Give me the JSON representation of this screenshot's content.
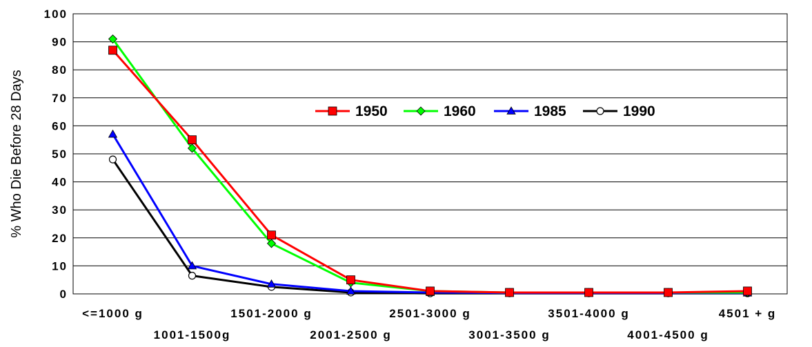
{
  "chart_data": {
    "type": "line",
    "title": "",
    "xlabel": "",
    "ylabel": "% Who Die Before 28 Days",
    "ylim": [
      0,
      100
    ],
    "yticks": [
      "0",
      "10",
      "20",
      "30",
      "40",
      "50",
      "60",
      "70",
      "80",
      "90",
      "100"
    ],
    "categories": [
      "<=1000 g",
      "1001-1500g",
      "1501-2000 g",
      "2001-2500 g",
      "2501-3000 g",
      "3001-3500 g",
      "3501-4000 g",
      "4001-4500 g",
      "4501 + g"
    ],
    "grid": true,
    "legend_position": "center",
    "series": [
      {
        "name": "1950",
        "color": "#ff0000",
        "marker": "square",
        "values": [
          87,
          55,
          21,
          5,
          1,
          0.5,
          0.5,
          0.5,
          1
        ]
      },
      {
        "name": "1960",
        "color": "#00ff00",
        "marker": "diamond",
        "values": [
          91,
          52,
          18,
          4,
          1,
          0.5,
          0.5,
          0.5,
          0.5
        ]
      },
      {
        "name": "1985",
        "color": "#0000ff",
        "marker": "triangle",
        "values": [
          57,
          10,
          3.5,
          1,
          0.5,
          0.3,
          0.3,
          0.3,
          0.3
        ]
      },
      {
        "name": "1990",
        "color": "#000000",
        "marker": "circle",
        "values": [
          48,
          6.5,
          2.5,
          0.5,
          0.2,
          0.2,
          0.2,
          0.2,
          0.2
        ]
      }
    ]
  }
}
